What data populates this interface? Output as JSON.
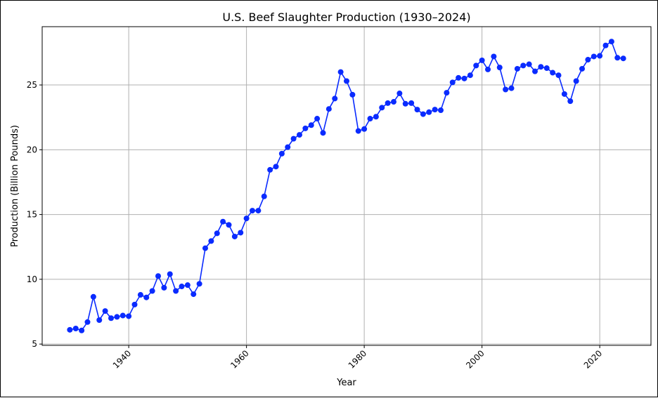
{
  "chart_data": {
    "type": "line",
    "title": "U.S. Beef Slaughter Production (1930–2024)",
    "xlabel": "Year",
    "ylabel": "Production (Billion Pounds)",
    "xlim": [
      1925.3,
      2028.7
    ],
    "ylim": [
      4.9,
      29.5
    ],
    "xticks": [
      1940,
      1960,
      1980,
      2000,
      2020
    ],
    "yticks": [
      5,
      10,
      15,
      20,
      25
    ],
    "grid": true,
    "legend": "none",
    "series": [
      {
        "color": "#0a2bff",
        "marker": "circle",
        "x": [
          1930,
          1931,
          1932,
          1933,
          1934,
          1935,
          1936,
          1937,
          1938,
          1939,
          1940,
          1941,
          1942,
          1943,
          1944,
          1945,
          1946,
          1947,
          1948,
          1949,
          1950,
          1951,
          1952,
          1953,
          1954,
          1955,
          1956,
          1957,
          1958,
          1959,
          1960,
          1961,
          1962,
          1963,
          1964,
          1965,
          1966,
          1967,
          1968,
          1969,
          1970,
          1971,
          1972,
          1973,
          1974,
          1975,
          1976,
          1977,
          1978,
          1979,
          1980,
          1981,
          1982,
          1983,
          1984,
          1985,
          1986,
          1987,
          1988,
          1989,
          1990,
          1991,
          1992,
          1993,
          1994,
          1995,
          1996,
          1997,
          1998,
          1999,
          2000,
          2001,
          2002,
          2003,
          2004,
          2005,
          2006,
          2007,
          2008,
          2009,
          2010,
          2011,
          2012,
          2013,
          2014,
          2015,
          2016,
          2017,
          2018,
          2019,
          2020,
          2021,
          2022,
          2023,
          2024
        ],
        "y": [
          6.1,
          6.2,
          6.05,
          6.7,
          8.65,
          6.85,
          7.55,
          7.0,
          7.1,
          7.2,
          7.15,
          8.05,
          8.8,
          8.6,
          9.1,
          10.25,
          9.35,
          10.4,
          9.1,
          9.45,
          9.55,
          8.85,
          9.65,
          12.4,
          12.95,
          13.55,
          14.45,
          14.2,
          13.3,
          13.6,
          14.7,
          15.3,
          15.3,
          16.4,
          18.45,
          18.7,
          19.7,
          20.2,
          20.85,
          21.15,
          21.65,
          21.9,
          22.4,
          21.3,
          23.15,
          23.95,
          26.0,
          25.3,
          24.25,
          21.45,
          21.6,
          22.4,
          22.55,
          23.25,
          23.6,
          23.7,
          24.35,
          23.55,
          23.6,
          23.1,
          22.75,
          22.9,
          23.1,
          23.05,
          24.4,
          25.2,
          25.55,
          25.5,
          25.75,
          26.5,
          26.9,
          26.2,
          27.2,
          26.35,
          24.65,
          24.75,
          26.25,
          26.5,
          26.6,
          26.05,
          26.4,
          26.3,
          25.95,
          25.75,
          24.3,
          23.75,
          25.3,
          26.25,
          26.95,
          27.2,
          27.25,
          28.05,
          28.35,
          27.1,
          27.05
        ]
      }
    ]
  }
}
